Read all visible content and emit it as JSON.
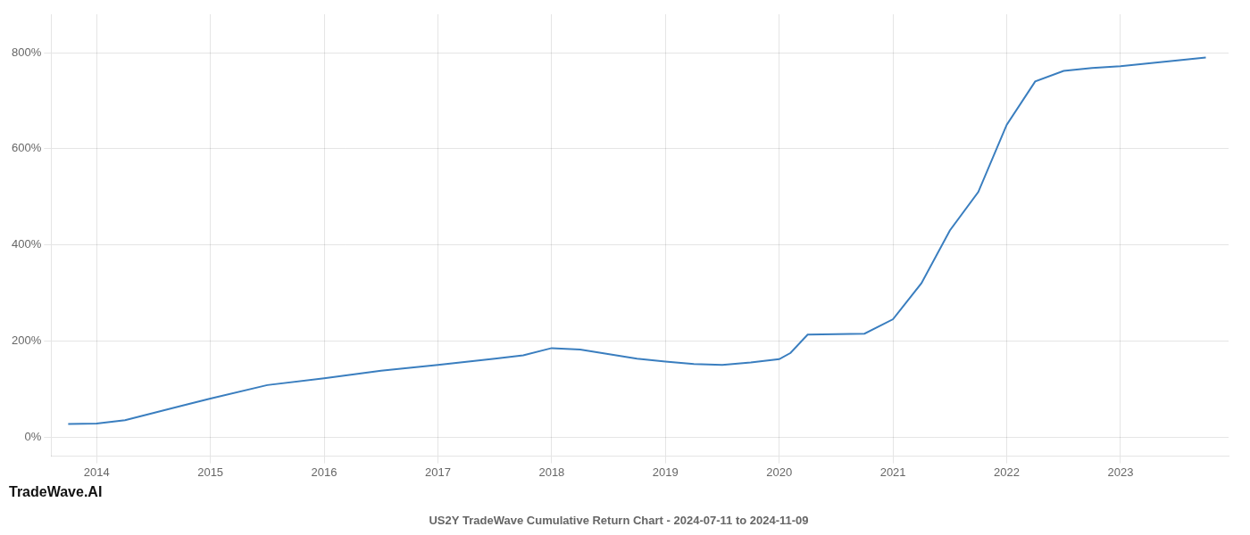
{
  "chart_data": {
    "type": "line",
    "title": "US2Y TradeWave Cumulative Return Chart - 2024-07-11 to 2024-11-09",
    "annotations": [
      "TradeWave.AI"
    ],
    "x": [
      2013.75,
      2014.0,
      2014.25,
      2014.75,
      2015.0,
      2015.5,
      2016.0,
      2016.5,
      2017.0,
      2017.5,
      2017.75,
      2018.0,
      2018.25,
      2018.75,
      2019.0,
      2019.25,
      2019.5,
      2019.75,
      2020.0,
      2020.1,
      2020.25,
      2020.75,
      2021.0,
      2021.25,
      2021.5,
      2021.75,
      2022.0,
      2022.25,
      2022.5,
      2022.75,
      2023.0,
      2023.25,
      2023.5,
      2023.75
    ],
    "values": [
      27,
      28,
      35,
      65,
      80,
      108,
      122,
      138,
      150,
      163,
      170,
      185,
      182,
      163,
      157,
      152,
      150,
      155,
      162,
      175,
      213,
      215,
      245,
      320,
      430,
      510,
      650,
      740,
      762,
      768,
      772,
      778,
      784,
      790
    ],
    "color": "#3a7ebf",
    "xlim": [
      2013.6,
      2023.95
    ],
    "ylim": [
      -40,
      880
    ],
    "xticks": [
      2014,
      2015,
      2016,
      2017,
      2018,
      2019,
      2020,
      2021,
      2022,
      2023
    ],
    "yticks": [
      {
        "value": 0,
        "label": "0%"
      },
      {
        "value": 200,
        "label": "200%"
      },
      {
        "value": 400,
        "label": "400%"
      },
      {
        "value": 600,
        "label": "600%"
      },
      {
        "value": 800,
        "label": "800%"
      }
    ],
    "grid": true
  }
}
